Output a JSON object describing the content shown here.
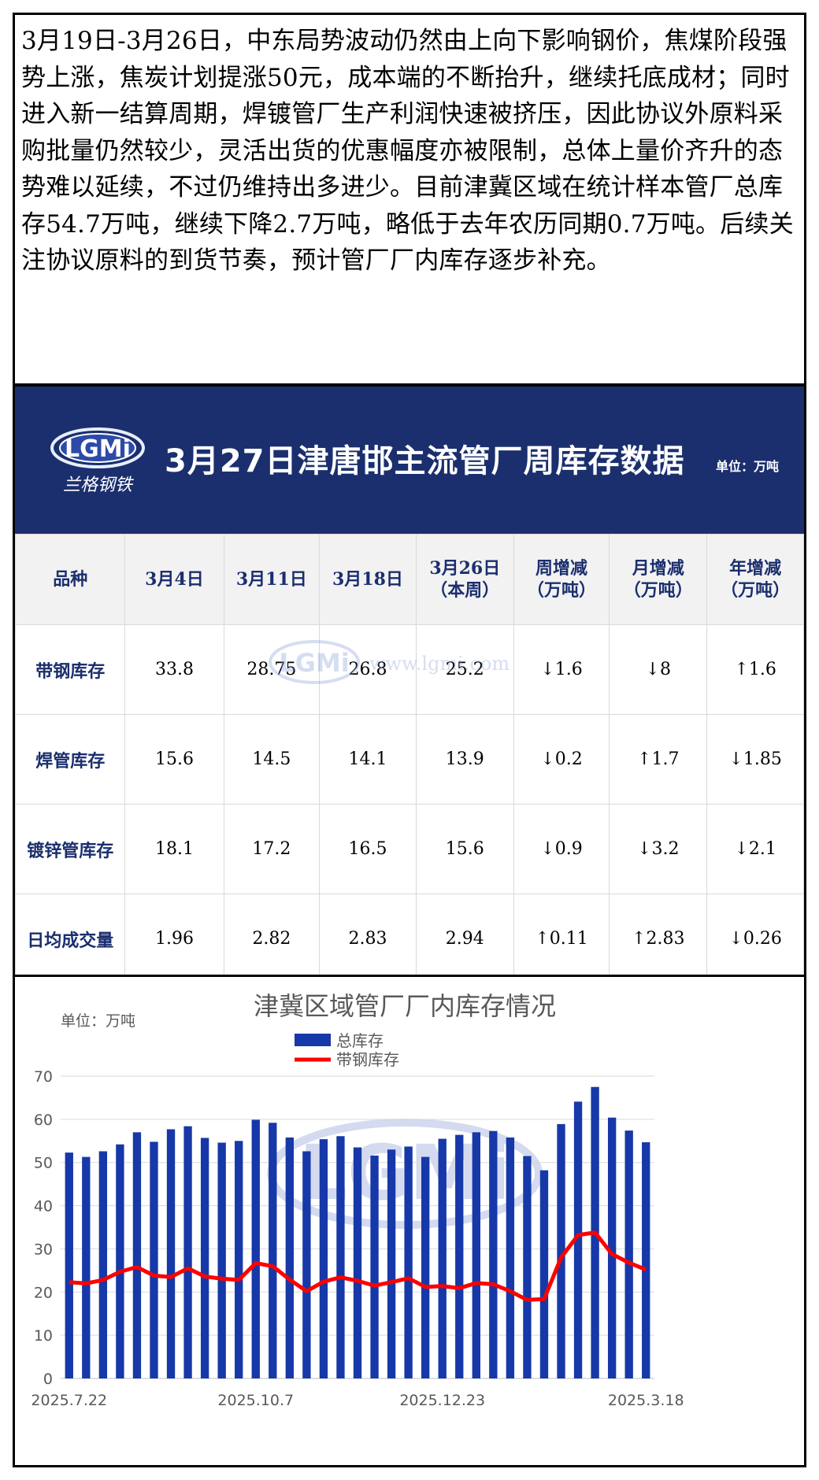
{
  "summary_text": "3月19日-3月26日，中东局势波动仍然由上向下影响钢价，焦煤阶段强势上涨，焦炭计划提涨50元，成本端的不断抬升，继续托底成材；同时进入新一结算周期，焊镀管厂生产利润快速被挤压，因此协议外原料采购批量仍然较少，灵活出货的优惠幅度亦被限制，总体上量价齐升的态势难以延续，不过仍维持出多进少。目前津冀区域在统计样本管厂总库存54.7万吨，继续下降2.7万吨，略低于去年农历同期0.7万吨。后续关注协议原料的到货节奏，预计管厂厂内库存逐步补充。",
  "banner": {
    "title": "3月27日津唐邯主流管厂周库存数据",
    "unit": "单位：万吨",
    "logo_text": "LGMi",
    "logo_sub": "兰格钢铁"
  },
  "table": {
    "headers": [
      "品种",
      "3月4日",
      "3月11日",
      "3月18日",
      "3月26日\n（本周）",
      "周增减\n（万吨）",
      "月增减\n（万吨）",
      "年增减\n（万吨）"
    ],
    "rows": [
      {
        "name": "带钢库存",
        "values": [
          "33.8",
          "28.75",
          "26.8",
          "25.2"
        ],
        "changes": [
          {
            "dir": "down",
            "v": "1.6"
          },
          {
            "dir": "down",
            "v": "8"
          },
          {
            "dir": "up",
            "v": "1.6"
          }
        ]
      },
      {
        "name": "焊管库存",
        "values": [
          "15.6",
          "14.5",
          "14.1",
          "13.9"
        ],
        "changes": [
          {
            "dir": "down",
            "v": "0.2"
          },
          {
            "dir": "up",
            "v": "1.7"
          },
          {
            "dir": "down",
            "v": "1.85"
          }
        ]
      },
      {
        "name": "镀锌管库存",
        "values": [
          "18.1",
          "17.2",
          "16.5",
          "15.6"
        ],
        "changes": [
          {
            "dir": "down",
            "v": "0.9"
          },
          {
            "dir": "down",
            "v": "3.2"
          },
          {
            "dir": "down",
            "v": "2.1"
          }
        ]
      },
      {
        "name": "日均成交量",
        "values": [
          "1.96",
          "2.82",
          "2.83",
          "2.94"
        ],
        "changes": [
          {
            "dir": "up",
            "v": "0.11"
          },
          {
            "dir": "up",
            "v": "2.83"
          },
          {
            "dir": "down",
            "v": "0.26"
          }
        ]
      }
    ],
    "watermark": "www.lgmi.com",
    "colors": {
      "header_text": "#1b2f6e",
      "down": "#00a650",
      "up": "#e60012",
      "banner": "#1b2f6e"
    }
  },
  "chart_data": {
    "type": "bar+line",
    "title": "津冀区域管厂厂内库存情况",
    "unit_label": "单位：万吨",
    "ylim": [
      0,
      70
    ],
    "yticks": [
      0,
      10,
      20,
      30,
      40,
      50,
      60,
      70
    ],
    "grid": true,
    "legend_placement": "top-center",
    "x_tick_labels": [
      {
        "index": 0,
        "label": "2025.7.22"
      },
      {
        "index": 11,
        "label": "2025.10.7"
      },
      {
        "index": 22,
        "label": "2025.12.23"
      },
      {
        "index": 34,
        "label": "2025.3.18"
      }
    ],
    "series": [
      {
        "name": "总库存",
        "kind": "bar",
        "color": "#1638a8",
        "values": [
          52.3,
          51.3,
          52.6,
          54.2,
          57.0,
          54.8,
          57.7,
          58.4,
          55.7,
          54.6,
          55.0,
          59.9,
          59.2,
          55.8,
          52.6,
          55.4,
          56.1,
          53.5,
          51.6,
          53.0,
          53.7,
          51.3,
          55.5,
          56.4,
          57.0,
          57.3,
          55.8,
          51.5,
          48.2,
          58.9,
          64.1,
          67.5,
          60.4,
          57.4,
          54.7
        ]
      },
      {
        "name": "带钢库存",
        "kind": "line",
        "color": "#ff0000",
        "values": [
          22.3,
          22.0,
          22.8,
          24.7,
          25.8,
          23.8,
          23.5,
          25.5,
          23.6,
          23.1,
          22.8,
          26.7,
          26.0,
          22.9,
          20.2,
          22.4,
          23.4,
          22.6,
          21.5,
          22.3,
          23.2,
          21.2,
          21.4,
          20.9,
          22.1,
          21.8,
          20.2,
          18.2,
          18.4,
          28.0,
          33.2,
          33.8,
          28.8,
          26.8,
          25.2
        ]
      }
    ],
    "watermark": "LGMi"
  }
}
